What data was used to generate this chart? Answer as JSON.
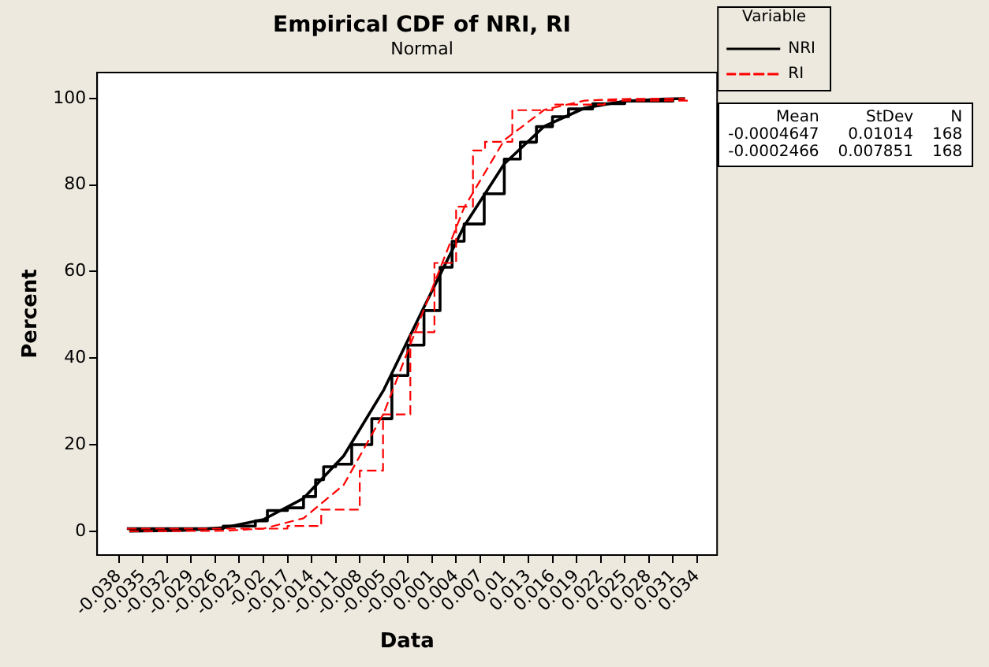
{
  "chart_data": {
    "type": "line",
    "title": "Empirical CDF of NRI, RI",
    "subtitle": "Normal",
    "xlabel": "Data",
    "ylabel": "Percent",
    "legend_title": "Variable",
    "legend": "top right",
    "marker": "none",
    "grid": false,
    "xlim": [
      -0.0407,
      0.0365
    ],
    "ylim": [
      -5.5,
      106
    ],
    "xticks": [
      -0.038,
      -0.035,
      -0.032,
      -0.029,
      -0.026,
      -0.023,
      -0.02,
      -0.017,
      -0.014,
      -0.011,
      -0.008,
      -0.005,
      -0.002,
      0.001,
      0.004,
      0.007,
      0.01,
      0.013,
      0.016,
      0.019,
      0.022,
      0.025,
      0.028,
      0.031,
      0.034
    ],
    "yticks": [
      0,
      20,
      40,
      60,
      80,
      100
    ],
    "annotations": [
      "Mean",
      "StDev",
      "N",
      "-0.0004647",
      "0.01014",
      "168",
      "-0.0002466",
      "0.007851",
      "168"
    ],
    "series": [
      {
        "name": "NRI",
        "type": "step",
        "color": "#000000",
        "line_style": "solid",
        "x": [
          -0.037,
          -0.025,
          -0.021,
          -0.0195,
          -0.017,
          -0.015,
          -0.0135,
          -0.0125,
          -0.011,
          -0.009,
          -0.0065,
          -0.004,
          -0.002,
          0,
          0.002,
          0.0035,
          0.005,
          0.0075,
          0.01,
          0.012,
          0.014,
          0.016,
          0.018,
          0.021,
          0.025,
          0.031
        ],
        "values": [
          0.6,
          1.2,
          2.4,
          4.8,
          5.4,
          8,
          11.9,
          14.9,
          15.5,
          20,
          26,
          36,
          43,
          51,
          61,
          67,
          71,
          78,
          86,
          89.9,
          93.5,
          95.8,
          97.6,
          98.8,
          99.4,
          100
        ]
      },
      {
        "name": "RI",
        "type": "step",
        "color": "#ff0000",
        "line_style": "dashed",
        "x": [
          -0.037,
          -0.025,
          -0.017,
          -0.0128,
          -0.008,
          -0.0051,
          -0.0017,
          0.0013,
          0.004,
          0.0061,
          0.0076,
          0.011,
          0.016,
          0.0225,
          0.033
        ],
        "values": [
          0.6,
          0.6,
          1.2,
          5,
          14,
          27,
          46,
          62,
          75,
          88,
          90,
          97.3,
          98.6,
          99.5,
          100
        ]
      },
      {
        "type": "line",
        "color": "#000000",
        "line_style": "solid",
        "x": [
          -0.0367,
          -0.03,
          -0.025,
          -0.02,
          -0.015,
          -0.01,
          -0.005,
          0,
          0.005,
          0.01,
          0.015,
          0.02,
          0.025,
          0.03,
          0.0325
        ],
        "values": [
          0,
          0.2,
          0.8,
          2.7,
          7.6,
          17.4,
          32.7,
          51.8,
          70.5,
          84.9,
          93.6,
          97.8,
          99.4,
          99.9,
          100
        ]
      },
      {
        "type": "line",
        "color": "#ff0000",
        "line_style": "dashed",
        "x": [
          -0.0367,
          -0.025,
          -0.02,
          -0.015,
          -0.01,
          -0.005,
          0,
          0.005,
          0.01,
          0.015,
          0.02,
          0.025,
          0.0325
        ],
        "values": [
          0,
          0.1,
          0.6,
          3,
          10.7,
          27.3,
          51.3,
          74.8,
          90.4,
          97.4,
          99.5,
          99.9,
          100
        ]
      }
    ]
  }
}
